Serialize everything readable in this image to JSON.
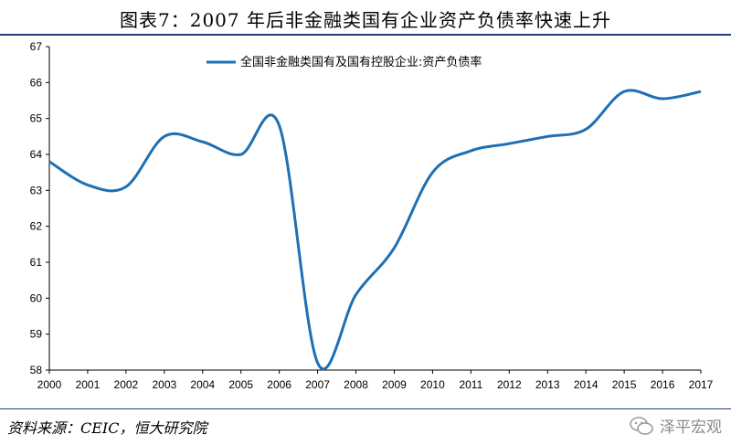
{
  "header": {
    "title": "图表7：2007 年后非金融类国有企业资产负债率快速上升"
  },
  "footer": {
    "source": "资料来源：CEIC，恒大研究院",
    "watermark": "泽平宏观"
  },
  "chart_data": {
    "type": "line",
    "title": "图表7：2007 年后非金融类国有企业资产负债率快速上升",
    "xlabel": "",
    "ylabel": "",
    "x": [
      "2000",
      "2001",
      "2002",
      "2003",
      "2004",
      "2005",
      "2006",
      "2007",
      "2008",
      "2009",
      "2010",
      "2011",
      "2012",
      "2013",
      "2014",
      "2015",
      "2016",
      "2017"
    ],
    "ylim": [
      58,
      67
    ],
    "yticks": [
      58,
      59,
      60,
      61,
      62,
      63,
      64,
      65,
      66,
      67
    ],
    "grid": false,
    "legend_position": "top-center",
    "series": [
      {
        "name": "全国非金融类国有及国有控股企业:资产负债率",
        "color": "#1f6fb4",
        "values": [
          63.8,
          63.15,
          63.1,
          64.5,
          64.35,
          64.0,
          64.8,
          58.2,
          60.1,
          61.4,
          63.5,
          64.1,
          64.3,
          64.5,
          64.7,
          65.75,
          65.55,
          65.75
        ]
      }
    ]
  }
}
